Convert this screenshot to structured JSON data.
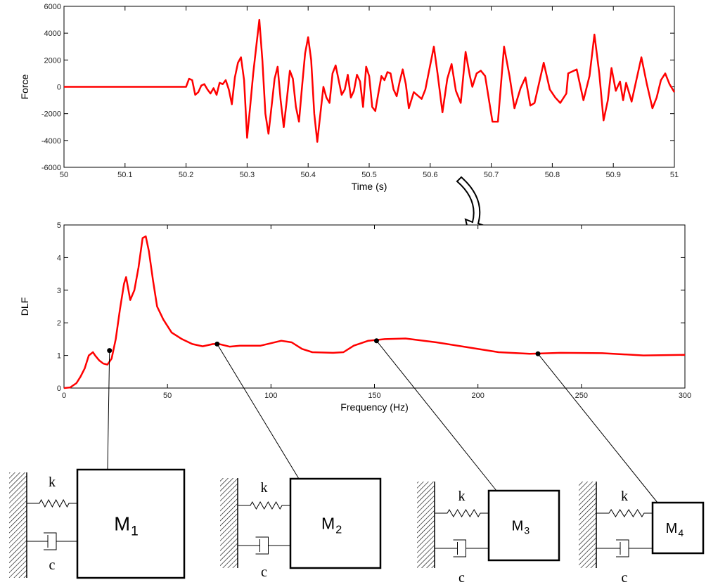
{
  "chart_data": [
    {
      "type": "line",
      "ylabel": "Force",
      "xlabel": "Time (s)",
      "color": "#ff0000",
      "xlim": [
        50,
        51
      ],
      "xticks": [
        50,
        50.1,
        50.2,
        50.3,
        50.4,
        50.5,
        50.6,
        50.7,
        50.8,
        50.9,
        51
      ],
      "ylim": [
        -6000,
        6000
      ],
      "yticks": [
        -6000,
        -4000,
        -2000,
        0,
        2000,
        4000,
        6000
      ],
      "x": [
        50,
        50.2,
        50.205,
        50.21,
        50.215,
        50.22,
        50.225,
        50.23,
        50.235,
        50.24,
        50.245,
        50.25,
        50.255,
        50.26,
        50.265,
        50.27,
        50.275,
        50.28,
        50.285,
        50.29,
        50.295,
        50.3,
        50.305,
        50.31,
        50.315,
        50.32,
        50.325,
        50.33,
        50.335,
        50.34,
        50.345,
        50.35,
        50.355,
        50.36,
        50.365,
        50.37,
        50.375,
        50.38,
        50.385,
        50.39,
        50.395,
        50.4,
        50.405,
        50.41,
        50.415,
        50.42,
        50.425,
        50.43,
        50.435,
        50.44,
        50.445,
        50.45,
        50.455,
        50.46,
        50.465,
        50.47,
        50.475,
        50.48,
        50.485,
        50.49,
        50.495,
        50.5,
        50.505,
        50.51,
        50.515,
        50.52,
        50.525,
        50.53,
        50.535,
        50.54,
        50.545,
        50.55,
        50.555,
        50.56,
        50.565,
        50.573,
        50.586,
        50.592,
        50.606,
        50.612,
        50.62,
        50.628,
        50.635,
        50.642,
        50.65,
        50.658,
        50.665,
        50.669,
        50.676,
        50.683,
        50.69,
        50.702,
        50.711,
        50.721,
        50.73,
        50.738,
        50.748,
        50.756,
        50.764,
        50.771,
        50.786,
        50.796,
        50.805,
        50.813,
        50.823,
        50.826,
        50.84,
        50.851,
        50.861,
        50.869,
        50.877,
        50.884,
        50.891,
        50.897,
        50.904,
        50.911,
        50.916,
        50.921,
        50.93,
        50.946,
        50.955,
        50.964,
        50.971,
        50.978,
        50.985,
        50.992,
        51
      ],
      "values": [
        0,
        0,
        600,
        500,
        -600,
        -400,
        100,
        200,
        -200,
        -500,
        -100,
        -600,
        300,
        200,
        500,
        -200,
        -1300,
        700,
        1800,
        2200,
        500,
        -3800,
        -1500,
        1000,
        3000,
        5000,
        2000,
        -2000,
        -3500,
        -1500,
        600,
        1500,
        -1000,
        -3000,
        -1000,
        1200,
        600,
        -1500,
        -2600,
        0,
        2500,
        3700,
        2000,
        -2000,
        -4100,
        -2000,
        0,
        -800,
        -1200,
        1000,
        1600,
        500,
        -600,
        -200,
        900,
        -800,
        -300,
        900,
        400,
        -1500,
        1500,
        800,
        -1500,
        -1800,
        -500,
        800,
        500,
        1100,
        1000,
        -200,
        -700,
        400,
        1300,
        200,
        -1600,
        -400,
        -900,
        -200,
        3000,
        1000,
        -1900,
        600,
        1700,
        -300,
        -1200,
        2600,
        800,
        0,
        1000,
        1200,
        800,
        -2600,
        -2600,
        3000,
        800,
        -1600,
        -100,
        700,
        -1400,
        -1200,
        1800,
        -200,
        -800,
        -1200,
        -500,
        1000,
        1300,
        -1000,
        800,
        3900,
        1000,
        -2500,
        -1000,
        1400,
        -300,
        400,
        -1000,
        300,
        -1100,
        2200,
        200,
        -1600,
        -800,
        500,
        1000,
        200,
        -400
      ]
    },
    {
      "type": "line",
      "ylabel": "DLF",
      "xlabel": "Frequency (Hz)",
      "color": "#ff0000",
      "xlim": [
        0,
        300
      ],
      "xticks": [
        0,
        50,
        100,
        150,
        200,
        250,
        300
      ],
      "ylim": [
        0,
        5
      ],
      "yticks": [
        0,
        1,
        2,
        3,
        4,
        5
      ],
      "x": [
        0,
        3,
        6,
        8,
        10,
        12,
        14,
        15,
        17,
        19,
        21,
        23,
        25,
        27,
        29,
        30,
        32,
        34,
        36,
        38,
        39.5,
        41,
        43,
        45,
        48,
        52,
        57,
        62,
        67,
        72,
        75,
        80,
        85,
        95,
        105,
        110,
        115,
        120,
        130,
        135,
        140,
        147,
        155,
        165,
        180,
        195,
        210,
        225,
        240,
        260,
        280,
        300
      ],
      "values": [
        0,
        0.02,
        0.15,
        0.35,
        0.6,
        1.0,
        1.1,
        1.0,
        0.85,
        0.75,
        0.72,
        0.9,
        1.5,
        2.4,
        3.2,
        3.4,
        2.7,
        3.0,
        3.7,
        4.6,
        4.65,
        4.2,
        3.3,
        2.5,
        2.1,
        1.7,
        1.5,
        1.35,
        1.28,
        1.35,
        1.35,
        1.27,
        1.3,
        1.3,
        1.45,
        1.4,
        1.2,
        1.1,
        1.08,
        1.1,
        1.3,
        1.45,
        1.5,
        1.52,
        1.4,
        1.25,
        1.1,
        1.05,
        1.08,
        1.07,
        1.0,
        1.02
      ],
      "markers": {
        "x": [
          22,
          74,
          151,
          229
        ],
        "values": [
          1.15,
          1.35,
          1.45,
          1.05
        ]
      }
    }
  ],
  "diagram": {
    "systems": [
      {
        "mass": "M",
        "index": "1",
        "spring": "k",
        "damper": "c"
      },
      {
        "mass": "M",
        "index": "2",
        "spring": "k",
        "damper": "c"
      },
      {
        "mass": "M",
        "index": "3",
        "spring": "k",
        "damper": "c"
      },
      {
        "mass": "M",
        "index": "4",
        "spring": "k",
        "damper": "c"
      }
    ]
  }
}
